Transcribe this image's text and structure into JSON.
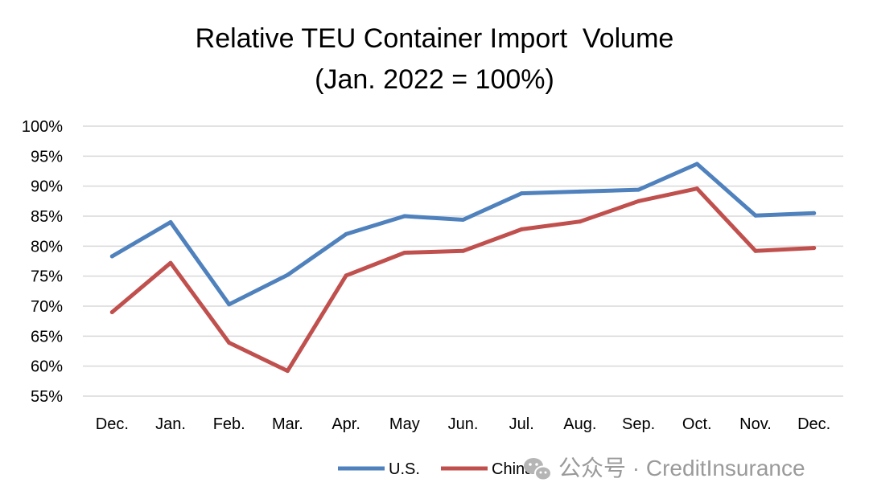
{
  "chart_data": {
    "type": "line",
    "title": "Relative TEU Container Import  Volume",
    "subtitle": "(Jan. 2022 = 100%)",
    "categories": [
      "Dec.",
      "Jan.",
      "Feb.",
      "Mar.",
      "Apr.",
      "May",
      "Jun.",
      "Jul.",
      "Aug.",
      "Sep.",
      "Oct.",
      "Nov.",
      "Dec."
    ],
    "series": [
      {
        "name": "U.S.",
        "color": "#4f81bd",
        "values": [
          78.3,
          84.0,
          70.3,
          75.2,
          82.0,
          85.0,
          84.4,
          88.8,
          89.1,
          89.4,
          93.7,
          85.1,
          85.5
        ]
      },
      {
        "name": "China",
        "color": "#c0504d",
        "values": [
          69.0,
          77.2,
          63.9,
          59.2,
          75.1,
          78.9,
          79.2,
          82.8,
          84.1,
          87.5,
          89.6,
          79.2,
          79.7
        ]
      }
    ],
    "ylim": [
      55,
      100
    ],
    "yticks": [
      55,
      60,
      65,
      70,
      75,
      80,
      85,
      90,
      95,
      100
    ],
    "ytick_labels": [
      "55%",
      "60%",
      "65%",
      "70%",
      "75%",
      "80%",
      "85%",
      "90%",
      "95%",
      "100%"
    ],
    "grid": true,
    "legend_position": "bottom"
  },
  "watermark": {
    "text": "公众号 · CreditInsurance",
    "icon": "wechat-icon"
  }
}
